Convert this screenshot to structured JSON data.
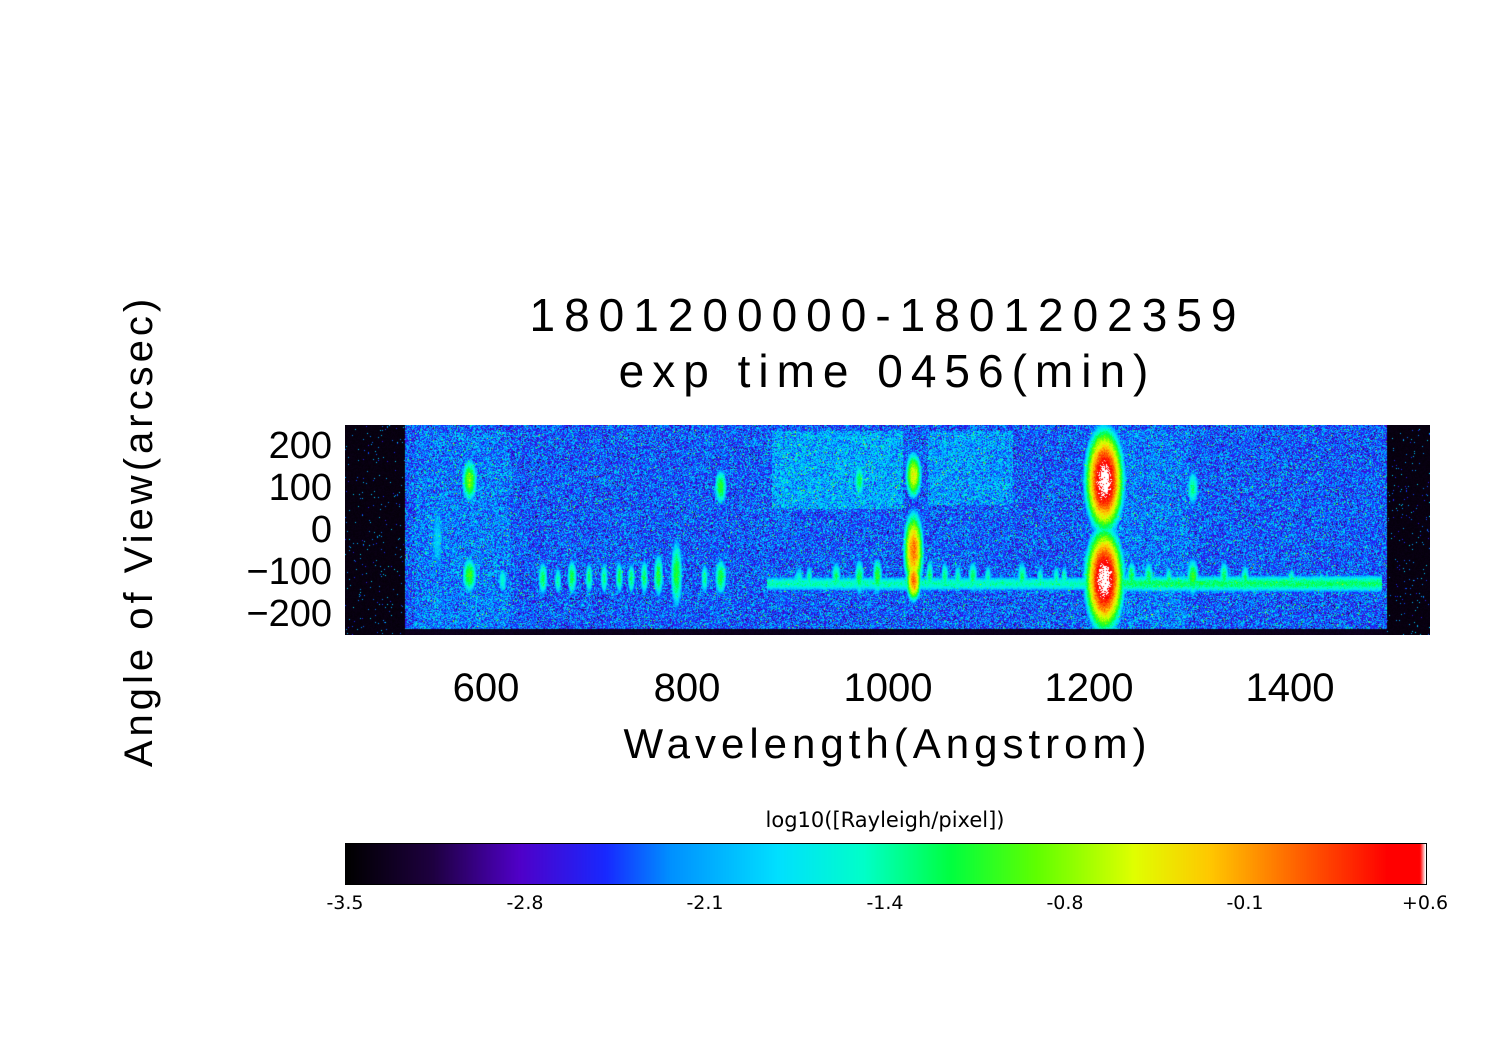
{
  "chart_data": {
    "type": "heatmap",
    "title": "1801200000-1801202359",
    "subtitle": "exp time 0456(min)",
    "xlabel": "Wavelength(Angstrom)",
    "ylabel": "Angle of View(arcsec)",
    "grid": false,
    "x_ticks": {
      "labels": [
        "600",
        "800",
        "1000",
        "1200",
        "1400"
      ],
      "values": [
        600,
        800,
        1000,
        1200,
        1400
      ]
    },
    "y_ticks": {
      "labels": [
        "200",
        "100",
        "0",
        "−100",
        "−200"
      ],
      "values": [
        200,
        100,
        0,
        -100,
        -200
      ]
    },
    "x_range_angstrom": [
      460,
      1540
    ],
    "y_range_arcsec": [
      -250,
      250
    ],
    "colorbar": {
      "label": "log10([Rayleigh/pixel])",
      "tick_labels": [
        "-3.5",
        "-2.8",
        "-2.1",
        "-1.4",
        "-0.8",
        "-0.1",
        "+0.6"
      ],
      "tick_values": [
        -3.5,
        -2.8,
        -2.1,
        -1.4,
        -0.8,
        -0.1,
        0.6
      ],
      "range": [
        -3.5,
        0.6
      ],
      "position": "bottom",
      "stops": [
        {
          "t": 0.0,
          "c": "#000000"
        },
        {
          "t": 0.08,
          "c": "#1e0040"
        },
        {
          "t": 0.16,
          "c": "#5000c8"
        },
        {
          "t": 0.24,
          "c": "#1828ff"
        },
        {
          "t": 0.3,
          "c": "#0090ff"
        },
        {
          "t": 0.4,
          "c": "#00e0ff"
        },
        {
          "t": 0.48,
          "c": "#00ffc8"
        },
        {
          "t": 0.56,
          "c": "#00ff40"
        },
        {
          "t": 0.64,
          "c": "#60ff00"
        },
        {
          "t": 0.73,
          "c": "#e0ff00"
        },
        {
          "t": 0.8,
          "c": "#ffc800"
        },
        {
          "t": 0.88,
          "c": "#ff6400"
        },
        {
          "t": 0.965,
          "c": "#ff0000"
        },
        {
          "t": 0.995,
          "c": "#ff0000"
        },
        {
          "t": 1.0,
          "c": "#ffffff"
        }
      ]
    },
    "image": {
      "description": "EUV airglow spectral image: wavelength (Angstrom) vs angle of view (arcsec), intensity log10(Rayleigh/pixel)",
      "background_log10": -2.42,
      "noise_sigma": 0.3,
      "speckle_probability": 0.035,
      "speckle_boost": [
        0.5,
        1.4
      ],
      "gaussian_falloff_per_sigma2": 1.3,
      "black_wavelength_bands": [
        [
          460,
          520
        ],
        [
          1497,
          1540
        ]
      ],
      "bottom_black_arcsec": -236,
      "noise_patches": [
        {
          "w0": 530,
          "w1": 625,
          "a0": -235,
          "a1": 235,
          "boost": 0.12
        },
        {
          "w0": 885,
          "w1": 1015,
          "a0": 50,
          "a1": 235,
          "boost": 0.3
        },
        {
          "w0": 1040,
          "w1": 1125,
          "a0": 60,
          "a1": 235,
          "boost": 0.25
        },
        {
          "w0": 1225,
          "w1": 1300,
          "a0": -235,
          "a1": 235,
          "boost": 0.12
        }
      ],
      "bands": [
        {
          "w0": 880,
          "w1": 1210,
          "y_center": -128,
          "y_sigma": 20,
          "peak": -1.5
        },
        {
          "w0": 1210,
          "w1": 1492,
          "y_center": -128,
          "y_sigma": 22,
          "peak": -1.3
        }
      ],
      "emission_features": [
        {
          "wavelength": 552,
          "sigma_w": 9,
          "y_center": -20,
          "sigma_y": 120,
          "peak_log10": -1.95
        },
        {
          "wavelength": 584,
          "sigma_w": 7,
          "y_center": 118,
          "sigma_y": 48,
          "peak_log10": -0.8
        },
        {
          "wavelength": 584,
          "sigma_w": 7,
          "y_center": -108,
          "sigma_y": 42,
          "peak_log10": -1.0
        },
        {
          "wavelength": 617,
          "sigma_w": 5,
          "y_center": -120,
          "sigma_y": 35,
          "peak_log10": -1.55
        },
        {
          "wavelength": 657,
          "sigma_w": 5,
          "y_center": -115,
          "sigma_y": 42,
          "peak_log10": -1.25
        },
        {
          "wavelength": 672,
          "sigma_w": 4,
          "y_center": -120,
          "sigma_y": 38,
          "peak_log10": -1.45
        },
        {
          "wavelength": 686,
          "sigma_w": 5,
          "y_center": -112,
          "sigma_y": 45,
          "peak_log10": -1.2
        },
        {
          "wavelength": 703,
          "sigma_w": 4,
          "y_center": -115,
          "sigma_y": 40,
          "peak_log10": -1.3
        },
        {
          "wavelength": 718,
          "sigma_w": 4,
          "y_center": -115,
          "sigma_y": 42,
          "peak_log10": -1.35
        },
        {
          "wavelength": 733,
          "sigma_w": 4,
          "y_center": -112,
          "sigma_y": 42,
          "peak_log10": -1.25
        },
        {
          "wavelength": 745,
          "sigma_w": 4,
          "y_center": -115,
          "sigma_y": 40,
          "peak_log10": -1.3
        },
        {
          "wavelength": 758,
          "sigma_w": 4,
          "y_center": -112,
          "sigma_y": 45,
          "peak_log10": -1.25
        },
        {
          "wavelength": 772,
          "sigma_w": 5,
          "y_center": -108,
          "sigma_y": 55,
          "peak_log10": -1.15
        },
        {
          "wavelength": 790,
          "sigma_w": 6,
          "y_center": -105,
          "sigma_y": 85,
          "peak_log10": -1.1
        },
        {
          "wavelength": 818,
          "sigma_w": 4,
          "y_center": -115,
          "sigma_y": 40,
          "peak_log10": -1.4
        },
        {
          "wavelength": 834,
          "sigma_w": 6,
          "y_center": 102,
          "sigma_y": 42,
          "peak_log10": -1.05
        },
        {
          "wavelength": 834,
          "sigma_w": 6,
          "y_center": -112,
          "sigma_y": 45,
          "peak_log10": -1.15
        },
        {
          "wavelength": 912,
          "sigma_w": 5,
          "y_center": -118,
          "sigma_y": 35,
          "peak_log10": -1.5
        },
        {
          "wavelength": 922,
          "sigma_w": 4,
          "y_center": -115,
          "sigma_y": 35,
          "peak_log10": -1.45
        },
        {
          "wavelength": 949,
          "sigma_w": 5,
          "y_center": -112,
          "sigma_y": 40,
          "peak_log10": -1.3
        },
        {
          "wavelength": 972,
          "sigma_w": 5,
          "y_center": 118,
          "sigma_y": 42,
          "peak_log10": -1.2
        },
        {
          "wavelength": 972,
          "sigma_w": 5,
          "y_center": -112,
          "sigma_y": 45,
          "peak_log10": -1.2
        },
        {
          "wavelength": 990,
          "sigma_w": 5,
          "y_center": -110,
          "sigma_y": 45,
          "peak_log10": -1.1
        },
        {
          "wavelength": 1026,
          "sigma_w": 7,
          "y_center": 130,
          "sigma_y": 48,
          "peak_log10": -0.45
        },
        {
          "wavelength": 1026,
          "sigma_w": 8,
          "y_center": -50,
          "sigma_y": 75,
          "peak_log10": 0.05
        },
        {
          "wavelength": 1026,
          "sigma_w": 6,
          "y_center": -120,
          "sigma_y": 40,
          "peak_log10": 0.1
        },
        {
          "wavelength": 1042,
          "sigma_w": 4,
          "y_center": -110,
          "sigma_y": 42,
          "peak_log10": -1.25
        },
        {
          "wavelength": 1057,
          "sigma_w": 4,
          "y_center": -112,
          "sigma_y": 40,
          "peak_log10": -1.3
        },
        {
          "wavelength": 1070,
          "sigma_w": 4,
          "y_center": -115,
          "sigma_y": 38,
          "peak_log10": -1.4
        },
        {
          "wavelength": 1085,
          "sigma_w": 5,
          "y_center": -112,
          "sigma_y": 40,
          "peak_log10": -1.25
        },
        {
          "wavelength": 1100,
          "sigma_w": 4,
          "y_center": -115,
          "sigma_y": 35,
          "peak_log10": -1.45
        },
        {
          "wavelength": 1134,
          "sigma_w": 5,
          "y_center": -112,
          "sigma_y": 40,
          "peak_log10": -1.3
        },
        {
          "wavelength": 1152,
          "sigma_w": 4,
          "y_center": -115,
          "sigma_y": 35,
          "peak_log10": -1.5
        },
        {
          "wavelength": 1168,
          "sigma_w": 4,
          "y_center": -115,
          "sigma_y": 35,
          "peak_log10": -1.45
        },
        {
          "wavelength": 1176,
          "sigma_w": 4,
          "y_center": -115,
          "sigma_y": 35,
          "peak_log10": -1.5
        },
        {
          "wavelength": 1216,
          "sigma_w": 14,
          "y_center": 118,
          "sigma_y": 90,
          "peak_log10": 0.78
        },
        {
          "wavelength": 1216,
          "sigma_w": 14,
          "y_center": -118,
          "sigma_y": 90,
          "peak_log10": 0.78
        },
        {
          "wavelength": 1243,
          "sigma_w": 5,
          "y_center": -112,
          "sigma_y": 40,
          "peak_log10": -1.2
        },
        {
          "wavelength": 1260,
          "sigma_w": 5,
          "y_center": -112,
          "sigma_y": 40,
          "peak_log10": -1.25
        },
        {
          "wavelength": 1280,
          "sigma_w": 4,
          "y_center": -118,
          "sigma_y": 35,
          "peak_log10": -1.35
        },
        {
          "wavelength": 1304,
          "sigma_w": 6,
          "y_center": 100,
          "sigma_y": 45,
          "peak_log10": -1.35
        },
        {
          "wavelength": 1304,
          "sigma_w": 6,
          "y_center": -112,
          "sigma_y": 45,
          "peak_log10": -1.05
        },
        {
          "wavelength": 1335,
          "sigma_w": 5,
          "y_center": -112,
          "sigma_y": 40,
          "peak_log10": -1.25
        },
        {
          "wavelength": 1356,
          "sigma_w": 5,
          "y_center": -118,
          "sigma_y": 38,
          "peak_log10": -1.3
        },
        {
          "wavelength": 1402,
          "sigma_w": 5,
          "y_center": -122,
          "sigma_y": 32,
          "peak_log10": -1.4
        },
        {
          "wavelength": 1432,
          "sigma_w": 4,
          "y_center": -125,
          "sigma_y": 28,
          "peak_log10": -1.45
        }
      ]
    }
  }
}
